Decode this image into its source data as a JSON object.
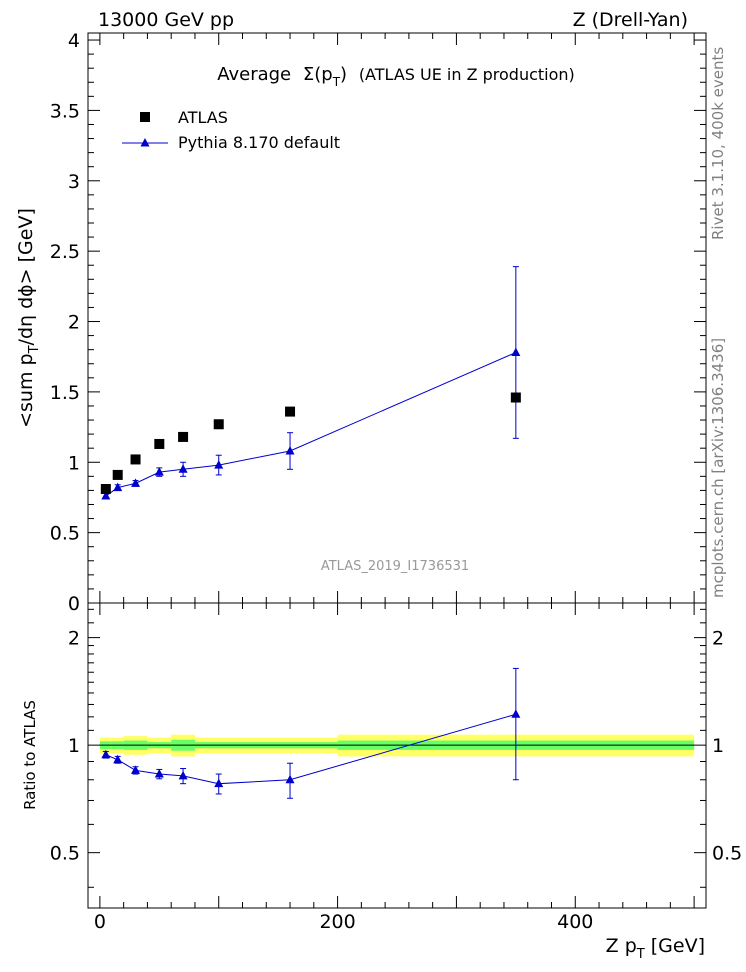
{
  "header": {
    "left": "13000 GeV pp",
    "right": "Z (Drell-Yan)"
  },
  "side_labels": {
    "rivet": "Rivet 3.1.10,  400k events",
    "mcplots": "mcplots.cern.ch [arXiv:1306.3436]"
  },
  "watermark": "ATLAS_2019_I1736531",
  "colors": {
    "data": "#000000",
    "mc": "#0000cc",
    "band_inner": "#66ff66",
    "band_outer": "#ffff66"
  },
  "chart_data": [
    {
      "type": "scatter",
      "panel": "main",
      "title_prefix": "Average",
      "title_symbol": "Σ(p",
      "title_symbol_sub": "T",
      "title_symbol_close": ")",
      "title_suffix": "(ATLAS UE in Z production)",
      "ylabel_main": "<sum p",
      "ylabel_sub1": "T",
      "ylabel_rest": "/dη dϕ> [GeV]",
      "xlim": [
        -10,
        510
      ],
      "ylim": [
        0,
        4.05
      ],
      "yticks": [
        "0",
        "0.5",
        "1",
        "1.5",
        "2",
        "2.5",
        "3",
        "3.5",
        "4"
      ],
      "legend": {
        "placement": "top-left",
        "entries": [
          "ATLAS",
          "Pythia 8.170 default"
        ]
      },
      "series": [
        {
          "name": "ATLAS",
          "marker": "square",
          "x": [
            5,
            15,
            30,
            50,
            70,
            100,
            160,
            350
          ],
          "y": [
            0.81,
            0.91,
            1.02,
            1.13,
            1.18,
            1.27,
            1.36,
            1.46
          ]
        },
        {
          "name": "Pythia 8.170 default",
          "marker": "triangle",
          "x": [
            5,
            15,
            30,
            50,
            70,
            100,
            160,
            350
          ],
          "y": [
            0.76,
            0.82,
            0.85,
            0.93,
            0.95,
            0.98,
            1.08,
            1.78
          ],
          "yerr": [
            0.02,
            0.02,
            0.02,
            0.03,
            0.05,
            0.07,
            0.13,
            0.61
          ]
        }
      ]
    },
    {
      "type": "scatter",
      "panel": "ratio",
      "ylabel": "Ratio to ATLAS",
      "xlabel_main": "Z p",
      "xlabel_sub": "T",
      "xlabel_rest": "[GeV]",
      "xlim": [
        -10,
        510
      ],
      "ylim": [
        0.35,
        2.5
      ],
      "log_y": true,
      "yticks": [
        "0.5",
        "1",
        "2"
      ],
      "xticks": [
        "0",
        "200",
        "400"
      ],
      "band": {
        "edges": [
          0,
          10,
          20,
          40,
          60,
          80,
          120,
          200,
          500
        ],
        "inner": [
          0.025,
          0.025,
          0.03,
          0.02,
          0.035,
          0.02,
          0.02,
          0.03
        ],
        "outer": [
          0.05,
          0.05,
          0.06,
          0.05,
          0.07,
          0.05,
          0.05,
          0.07
        ]
      },
      "series": [
        {
          "name": "Pythia 8.170 default",
          "x": [
            5,
            15,
            30,
            50,
            70,
            100,
            160,
            350
          ],
          "y": [
            0.94,
            0.91,
            0.85,
            0.83,
            0.82,
            0.78,
            0.8,
            1.22
          ],
          "yerr": [
            0.02,
            0.02,
            0.02,
            0.025,
            0.04,
            0.05,
            0.09,
            0.42
          ]
        }
      ]
    }
  ]
}
